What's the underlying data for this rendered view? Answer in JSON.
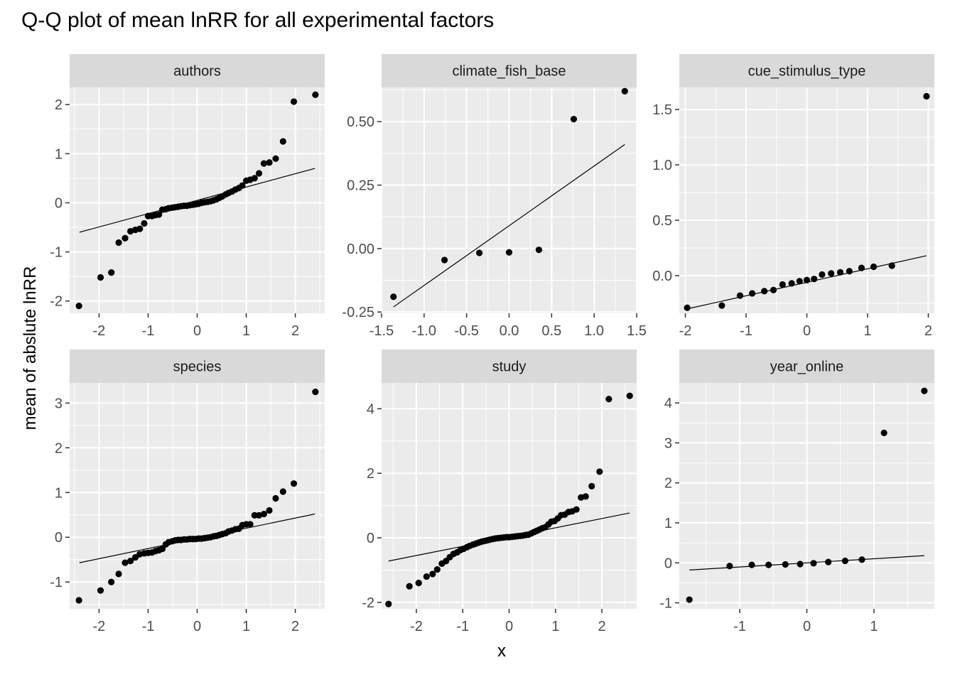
{
  "chart_data": {
    "type": "scatter",
    "title": "Q-Q plot of mean lnRR for all experimental factors",
    "xlabel": "x",
    "ylabel": "mean of abslute lnRR",
    "panels": [
      {
        "name": "authors",
        "xlim": [
          -2.6,
          2.6
        ],
        "ylim": [
          -2.25,
          2.35
        ],
        "xticks": [
          -2,
          -1,
          0,
          1,
          2
        ],
        "yticks": [
          -2,
          -1,
          0,
          1,
          2
        ],
        "x_tick_labels": [
          "-2",
          "-1",
          "0",
          "1",
          "2"
        ],
        "y_tick_labels": [
          "-2",
          "-1",
          "0",
          "1",
          "2"
        ],
        "line": [
          [
            -2.4,
            -0.6
          ],
          [
            2.4,
            0.7
          ]
        ],
        "points": [
          [
            -2.41,
            -2.1
          ],
          [
            -1.97,
            -1.52
          ],
          [
            -1.75,
            -1.42
          ],
          [
            -1.6,
            -0.81
          ],
          [
            -1.47,
            -0.72
          ],
          [
            -1.36,
            -0.58
          ],
          [
            -1.26,
            -0.55
          ],
          [
            -1.17,
            -0.53
          ],
          [
            -1.08,
            -0.42
          ],
          [
            -1.0,
            -0.27
          ],
          [
            -0.92,
            -0.27
          ],
          [
            -0.85,
            -0.25
          ],
          [
            -0.78,
            -0.24
          ],
          [
            -0.71,
            -0.14
          ],
          [
            -0.64,
            -0.13
          ],
          [
            -0.58,
            -0.11
          ],
          [
            -0.51,
            -0.1
          ],
          [
            -0.45,
            -0.09
          ],
          [
            -0.39,
            -0.08
          ],
          [
            -0.33,
            -0.07
          ],
          [
            -0.27,
            -0.06
          ],
          [
            -0.21,
            -0.06
          ],
          [
            -0.15,
            -0.05
          ],
          [
            -0.09,
            -0.04
          ],
          [
            -0.03,
            -0.03
          ],
          [
            0.03,
            -0.02
          ],
          [
            0.09,
            0.0
          ],
          [
            0.15,
            0.01
          ],
          [
            0.21,
            0.02
          ],
          [
            0.27,
            0.03
          ],
          [
            0.33,
            0.05
          ],
          [
            0.39,
            0.07
          ],
          [
            0.45,
            0.1
          ],
          [
            0.51,
            0.13
          ],
          [
            0.58,
            0.17
          ],
          [
            0.64,
            0.2
          ],
          [
            0.71,
            0.23
          ],
          [
            0.78,
            0.27
          ],
          [
            0.85,
            0.3
          ],
          [
            0.92,
            0.35
          ],
          [
            1.0,
            0.45
          ],
          [
            1.08,
            0.47
          ],
          [
            1.17,
            0.5
          ],
          [
            1.26,
            0.6
          ],
          [
            1.36,
            0.8
          ],
          [
            1.47,
            0.82
          ],
          [
            1.6,
            0.9
          ],
          [
            1.75,
            1.25
          ],
          [
            1.97,
            2.06
          ],
          [
            2.41,
            2.2
          ]
        ]
      },
      {
        "name": "climate_fish_base",
        "xlim": [
          -1.5,
          1.5
        ],
        "ylim": [
          -0.255,
          0.635
        ],
        "xticks": [
          -1.5,
          -1.0,
          -0.5,
          0.0,
          0.5,
          1.0,
          1.5
        ],
        "yticks": [
          -0.25,
          0.0,
          0.25,
          0.5
        ],
        "x_tick_labels": [
          "-1.5",
          "-1.0",
          "-0.5",
          "0.0",
          "0.5",
          "1.0",
          "1.5"
        ],
        "y_tick_labels": [
          "-0.25",
          "0.00",
          "0.25",
          "0.50"
        ],
        "line": [
          [
            -1.36,
            -0.23
          ],
          [
            1.36,
            0.41
          ]
        ],
        "points": [
          [
            -1.36,
            -0.19
          ],
          [
            -0.76,
            -0.045
          ],
          [
            -0.35,
            -0.017
          ],
          [
            0.0,
            -0.015
          ],
          [
            0.35,
            -0.005
          ],
          [
            0.76,
            0.51
          ],
          [
            1.36,
            0.62
          ]
        ]
      },
      {
        "name": "cue_stimulus_type",
        "xlim": [
          -2.1,
          2.1
        ],
        "ylim": [
          -0.34,
          1.7
        ],
        "xticks": [
          -2,
          -1,
          0,
          1,
          2
        ],
        "yticks": [
          0.0,
          0.5,
          1.0,
          1.5
        ],
        "x_tick_labels": [
          "-2",
          "-1",
          "0",
          "1",
          "2"
        ],
        "y_tick_labels": [
          "0.0",
          "0.5",
          "1.0",
          "1.5"
        ],
        "line": [
          [
            -1.97,
            -0.3
          ],
          [
            1.97,
            0.18
          ]
        ],
        "points": [
          [
            -1.97,
            -0.29
          ],
          [
            -1.4,
            -0.27
          ],
          [
            -1.1,
            -0.18
          ],
          [
            -0.9,
            -0.16
          ],
          [
            -0.7,
            -0.14
          ],
          [
            -0.55,
            -0.13
          ],
          [
            -0.4,
            -0.08
          ],
          [
            -0.25,
            -0.07
          ],
          [
            -0.12,
            -0.05
          ],
          [
            0.0,
            -0.04
          ],
          [
            0.12,
            -0.03
          ],
          [
            0.25,
            0.01
          ],
          [
            0.4,
            0.02
          ],
          [
            0.55,
            0.03
          ],
          [
            0.7,
            0.04
          ],
          [
            0.9,
            0.07
          ],
          [
            1.1,
            0.08
          ],
          [
            1.4,
            0.09
          ],
          [
            1.97,
            1.62
          ]
        ]
      },
      {
        "name": "species",
        "xlim": [
          -2.6,
          2.6
        ],
        "ylim": [
          -1.6,
          3.45
        ],
        "xticks": [
          -2,
          -1,
          0,
          1,
          2
        ],
        "yticks": [
          -1,
          0,
          1,
          2,
          3
        ],
        "x_tick_labels": [
          "-2",
          "-1",
          "0",
          "1",
          "2"
        ],
        "y_tick_labels": [
          "-1",
          "0",
          "1",
          "2",
          "3"
        ],
        "line": [
          [
            -2.4,
            -0.57
          ],
          [
            2.4,
            0.52
          ]
        ],
        "points": [
          [
            -2.41,
            -1.41
          ],
          [
            -1.97,
            -1.19
          ],
          [
            -1.75,
            -1.0
          ],
          [
            -1.6,
            -0.82
          ],
          [
            -1.47,
            -0.57
          ],
          [
            -1.36,
            -0.53
          ],
          [
            -1.26,
            -0.45
          ],
          [
            -1.17,
            -0.38
          ],
          [
            -1.08,
            -0.36
          ],
          [
            -1.0,
            -0.35
          ],
          [
            -0.92,
            -0.34
          ],
          [
            -0.85,
            -0.31
          ],
          [
            -0.78,
            -0.29
          ],
          [
            -0.71,
            -0.26
          ],
          [
            -0.64,
            -0.16
          ],
          [
            -0.58,
            -0.11
          ],
          [
            -0.51,
            -0.09
          ],
          [
            -0.45,
            -0.07
          ],
          [
            -0.39,
            -0.06
          ],
          [
            -0.33,
            -0.06
          ],
          [
            -0.27,
            -0.05
          ],
          [
            -0.21,
            -0.05
          ],
          [
            -0.15,
            -0.04
          ],
          [
            -0.09,
            -0.04
          ],
          [
            -0.03,
            -0.04
          ],
          [
            0.03,
            -0.03
          ],
          [
            0.09,
            -0.03
          ],
          [
            0.15,
            -0.02
          ],
          [
            0.21,
            -0.01
          ],
          [
            0.27,
            0.0
          ],
          [
            0.33,
            0.02
          ],
          [
            0.39,
            0.03
          ],
          [
            0.45,
            0.05
          ],
          [
            0.51,
            0.07
          ],
          [
            0.58,
            0.09
          ],
          [
            0.64,
            0.13
          ],
          [
            0.71,
            0.15
          ],
          [
            0.78,
            0.18
          ],
          [
            0.85,
            0.19
          ],
          [
            0.92,
            0.27
          ],
          [
            1.0,
            0.29
          ],
          [
            1.08,
            0.29
          ],
          [
            1.17,
            0.49
          ],
          [
            1.26,
            0.49
          ],
          [
            1.36,
            0.52
          ],
          [
            1.47,
            0.6
          ],
          [
            1.6,
            0.87
          ],
          [
            1.75,
            1.02
          ],
          [
            1.97,
            1.2
          ],
          [
            2.41,
            3.25
          ]
        ]
      },
      {
        "name": "study",
        "xlim": [
          -2.75,
          2.75
        ],
        "ylim": [
          -2.2,
          4.8
        ],
        "xticks": [
          -2,
          -1,
          0,
          1,
          2
        ],
        "yticks": [
          -2,
          0,
          2,
          4
        ],
        "x_tick_labels": [
          "-2",
          "-1",
          "0",
          "1",
          "2"
        ],
        "y_tick_labels": [
          "-2",
          "0",
          "2",
          "4"
        ],
        "line": [
          [
            -2.6,
            -0.72
          ],
          [
            2.6,
            0.77
          ]
        ],
        "points": [
          [
            -2.6,
            -2.05
          ],
          [
            -2.15,
            -1.5
          ],
          [
            -1.95,
            -1.4
          ],
          [
            -1.78,
            -1.2
          ],
          [
            -1.65,
            -1.12
          ],
          [
            -1.55,
            -0.98
          ],
          [
            -1.45,
            -0.8
          ],
          [
            -1.36,
            -0.72
          ],
          [
            -1.28,
            -0.6
          ],
          [
            -1.2,
            -0.5
          ],
          [
            -1.12,
            -0.45
          ],
          [
            -1.05,
            -0.38
          ],
          [
            -0.98,
            -0.34
          ],
          [
            -0.91,
            -0.29
          ],
          [
            -0.85,
            -0.25
          ],
          [
            -0.78,
            -0.21
          ],
          [
            -0.72,
            -0.18
          ],
          [
            -0.66,
            -0.15
          ],
          [
            -0.6,
            -0.12
          ],
          [
            -0.54,
            -0.1
          ],
          [
            -0.48,
            -0.08
          ],
          [
            -0.42,
            -0.06
          ],
          [
            -0.36,
            -0.04
          ],
          [
            -0.3,
            -0.02
          ],
          [
            -0.24,
            -0.01
          ],
          [
            -0.18,
            0.0
          ],
          [
            -0.12,
            0.01
          ],
          [
            -0.06,
            0.02
          ],
          [
            0.0,
            0.02
          ],
          [
            0.06,
            0.03
          ],
          [
            0.12,
            0.04
          ],
          [
            0.18,
            0.05
          ],
          [
            0.24,
            0.06
          ],
          [
            0.3,
            0.07
          ],
          [
            0.36,
            0.09
          ],
          [
            0.42,
            0.1
          ],
          [
            0.48,
            0.14
          ],
          [
            0.54,
            0.18
          ],
          [
            0.6,
            0.22
          ],
          [
            0.66,
            0.26
          ],
          [
            0.72,
            0.3
          ],
          [
            0.78,
            0.33
          ],
          [
            0.85,
            0.42
          ],
          [
            0.91,
            0.5
          ],
          [
            0.98,
            0.52
          ],
          [
            1.05,
            0.6
          ],
          [
            1.12,
            0.7
          ],
          [
            1.2,
            0.72
          ],
          [
            1.28,
            0.8
          ],
          [
            1.36,
            0.82
          ],
          [
            1.45,
            0.88
          ],
          [
            1.55,
            1.25
          ],
          [
            1.65,
            1.28
          ],
          [
            1.78,
            1.6
          ],
          [
            1.95,
            2.05
          ],
          [
            2.15,
            4.3
          ],
          [
            2.6,
            4.4
          ]
        ]
      },
      {
        "name": "year_online",
        "xlim": [
          -1.9,
          1.9
        ],
        "ylim": [
          -1.15,
          4.5
        ],
        "xticks": [
          -1,
          0,
          1
        ],
        "yticks": [
          -1,
          0,
          1,
          2,
          3,
          4
        ],
        "x_tick_labels": [
          "-1",
          "0",
          "1"
        ],
        "y_tick_labels": [
          "-1",
          "0",
          "1",
          "2",
          "3",
          "4"
        ],
        "line": [
          [
            -1.75,
            -0.18
          ],
          [
            1.75,
            0.18
          ]
        ],
        "points": [
          [
            -1.75,
            -0.92
          ],
          [
            -1.15,
            -0.08
          ],
          [
            -0.82,
            -0.05
          ],
          [
            -0.57,
            -0.05
          ],
          [
            -0.32,
            -0.04
          ],
          [
            -0.1,
            -0.03
          ],
          [
            0.1,
            -0.01
          ],
          [
            0.32,
            0.02
          ],
          [
            0.57,
            0.05
          ],
          [
            0.82,
            0.08
          ],
          [
            1.15,
            3.25
          ],
          [
            1.75,
            4.3
          ]
        ]
      }
    ]
  }
}
